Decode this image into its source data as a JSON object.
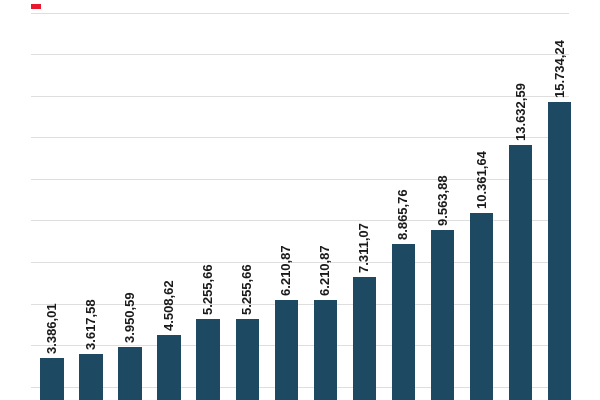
{
  "chart_data": {
    "type": "bar",
    "title": "",
    "xlabel": "",
    "ylabel": "",
    "values": [
      3386.01,
      3617.58,
      3950.59,
      4508.62,
      5255.66,
      5255.66,
      6210.87,
      6210.87,
      7311.07,
      8865.76,
      9563.88,
      10361.64,
      13632.59,
      15734.24
    ],
    "bar_labels": [
      "3.386,01",
      "3.617,58",
      "3.950,59",
      "4.508,62",
      "5.255,66",
      "5.255,66",
      "6.210,87",
      "6.210,87",
      "7.311,07",
      "8.865,76",
      "9.563,88",
      "10.361,64",
      "13.632,59",
      "15.734,24"
    ],
    "number_format": "de-DE",
    "bar_count": 14,
    "ylim": [
      0,
      20000
    ],
    "gridline_values": [
      2000,
      4000,
      6000,
      8000,
      10000,
      12000,
      14000,
      16000,
      18000,
      20000
    ],
    "grid": "horizontal",
    "legend_position": "none",
    "axis_tick_labels_visible": false,
    "category_labels_visible": false,
    "data_label_rotation_deg": 90,
    "colors": {
      "bar": "#1d4963",
      "gridline": "#dedede",
      "label_text": "#1a1a1a",
      "background": "#ffffff",
      "corner_mark": "#e8192c"
    }
  }
}
